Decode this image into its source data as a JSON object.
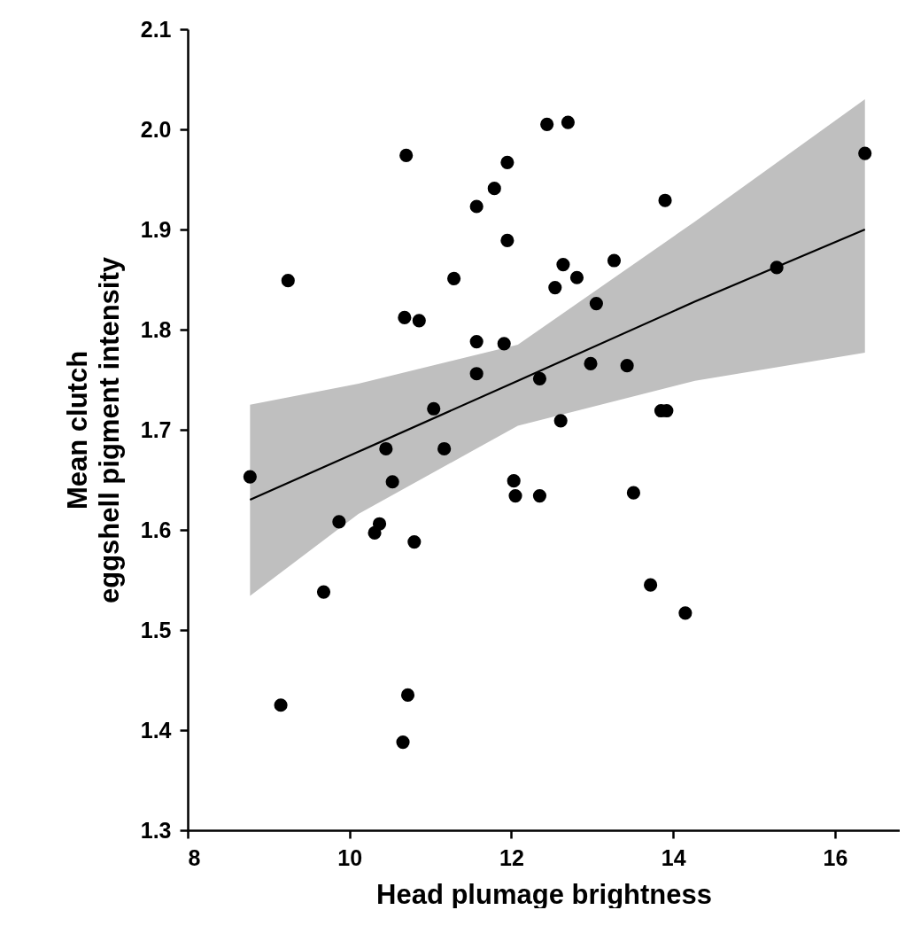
{
  "chart_data": {
    "type": "scatter",
    "xlabel": "Head plumage brightness",
    "ylabel": "Mean clutch\neggshell pigment intensity",
    "xlim": [
      8,
      16.8
    ],
    "xticks": [
      8,
      10,
      12,
      14,
      16
    ],
    "ylim": [
      1.3,
      2.1
    ],
    "yticks": [
      1.3,
      1.4,
      1.5,
      1.6,
      1.7,
      1.8,
      1.9,
      {
        "value": 2,
        "label": "2.0"
      },
      2.1
    ],
    "grid": false,
    "series": [
      {
        "type": "line",
        "color": "#000000",
        "x": [
          8.77,
          10.11,
          12.08,
          14.27,
          16.37
        ],
        "values": [
          1.63,
          1.678,
          1.749,
          1.828,
          1.9
        ],
        "marker": "none",
        "lower": [
          1.534,
          1.616,
          1.704,
          1.749,
          1.777
        ],
        "upper": [
          1.725,
          1.746,
          1.785,
          1.908,
          2.03
        ]
      },
      {
        "color": "#000000",
        "marker": "circle",
        "x": [
          10.7,
          11.95,
          11.79,
          11.57,
          11.95,
          9.24,
          11.29,
          10.68,
          10.86,
          11.57,
          11.91,
          11.57,
          11.04,
          10.45,
          11.17,
          8.77,
          12.44,
          12.7,
          16.37,
          13.9,
          12.64,
          13.27,
          12.81,
          12.54,
          13.05,
          15.28,
          12.35,
          12.98,
          13.43,
          12.61,
          13.85,
          13.92,
          10.53,
          12.03,
          12.05,
          12.35,
          9.87,
          10.37,
          10.31,
          10.8,
          9.68,
          9.15,
          10.72,
          10.66,
          13.51,
          13.72,
          14.15
        ],
        "values": [
          1.974,
          1.967,
          1.941,
          1.923,
          1.889,
          1.849,
          1.851,
          1.812,
          1.809,
          1.788,
          1.786,
          1.756,
          1.721,
          1.681,
          1.681,
          1.653,
          2.005,
          2.007,
          1.976,
          1.929,
          1.865,
          1.869,
          1.852,
          1.842,
          1.826,
          1.862,
          1.751,
          1.766,
          1.764,
          1.709,
          1.719,
          1.719,
          1.648,
          1.649,
          1.634,
          1.634,
          1.608,
          1.606,
          1.597,
          1.588,
          1.538,
          1.425,
          1.435,
          1.388,
          1.637,
          1.545,
          1.517
        ]
      }
    ]
  }
}
